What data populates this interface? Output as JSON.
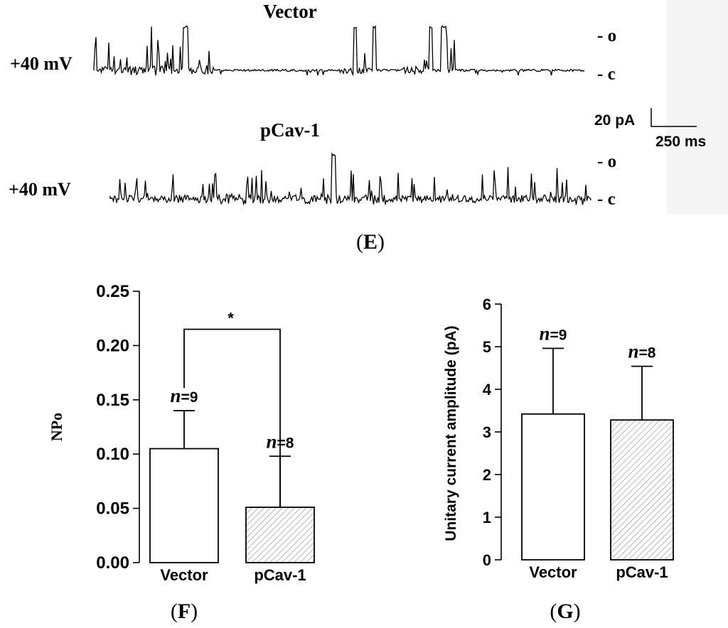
{
  "panel_e": {
    "panel_label": "E",
    "traces": [
      {
        "title": "Vector",
        "voltage": "+40 mV"
      },
      {
        "title": "pCav-1",
        "voltage": "+40 mV"
      }
    ],
    "state_open": "- o",
    "state_closed": "- c",
    "scale_current": "20 pA",
    "scale_time": "250 ms"
  },
  "chart_data": [
    {
      "panel_label": "F",
      "type": "bar",
      "categories": [
        "Vector",
        "pCav-1"
      ],
      "values": [
        0.105,
        0.051
      ],
      "errors_upper": [
        0.035,
        0.047
      ],
      "n_labels": [
        {
          "prefix": "n",
          "value": "=9"
        },
        {
          "prefix": "n",
          "value": "=8"
        }
      ],
      "fills": [
        "white",
        "hatched"
      ],
      "title": "",
      "xlabel": "",
      "ylabel": "NPo",
      "ylim": [
        0,
        0.25
      ],
      "yticks": [
        "0.00",
        "0.05",
        "0.10",
        "0.15",
        "0.20",
        "0.25"
      ],
      "ytick_values": [
        0,
        0.05,
        0.1,
        0.15,
        0.2,
        0.25
      ],
      "significance": {
        "between": [
          0,
          1
        ],
        "label": "*",
        "level": 0.215
      }
    },
    {
      "panel_label": "G",
      "type": "bar",
      "categories": [
        "Vector",
        "pCav-1"
      ],
      "values": [
        3.42,
        3.28
      ],
      "errors_upper": [
        1.54,
        1.26
      ],
      "n_labels": [
        {
          "prefix": "n",
          "value": "=9"
        },
        {
          "prefix": "n",
          "value": "=8"
        }
      ],
      "fills": [
        "white",
        "hatched"
      ],
      "title": "",
      "xlabel": "",
      "ylabel": "Unitary current amplitude (pA)",
      "ylim": [
        0,
        6
      ],
      "yticks": [
        "0",
        "1",
        "2",
        "3",
        "4",
        "5",
        "6"
      ],
      "ytick_values": [
        0,
        1,
        2,
        3,
        4,
        5,
        6
      ]
    }
  ]
}
